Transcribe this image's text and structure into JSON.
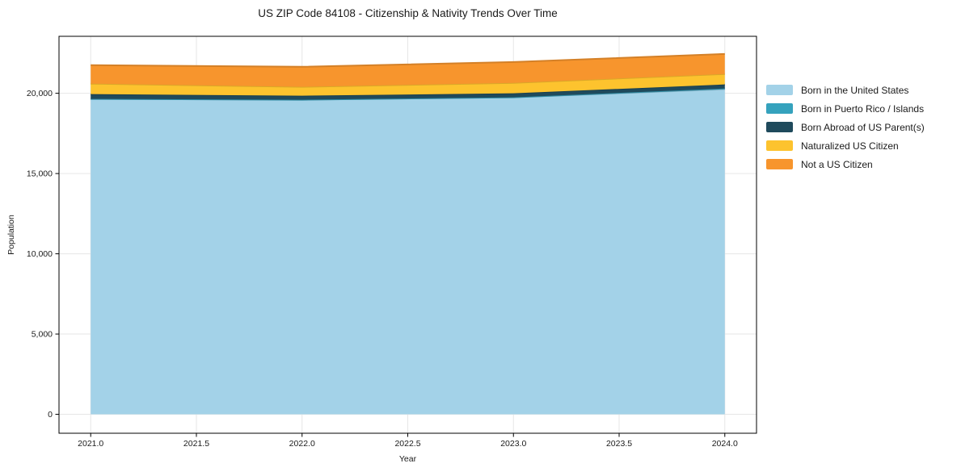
{
  "chart_data": {
    "type": "area",
    "stacked": true,
    "title": "US ZIP Code 84108 - Citizenship & Nativity Trends Over Time",
    "xlabel": "Year",
    "ylabel": "Population",
    "x": [
      2021,
      2022,
      2023,
      2024
    ],
    "series": [
      {
        "name": "Born in the United States",
        "color": "#A3D2E8",
        "values": [
          19650,
          19600,
          19750,
          20250
        ]
      },
      {
        "name": "Born in Puerto Rico / Islands",
        "color": "#35A2BD",
        "values": [
          0,
          0,
          0,
          50
        ]
      },
      {
        "name": "Born Abroad of US Parent(s)",
        "color": "#1F4A5C",
        "values": [
          300,
          250,
          250,
          250
        ]
      },
      {
        "name": "Naturalized US Citizen",
        "color": "#FDC32E",
        "values": [
          650,
          550,
          650,
          650
        ]
      },
      {
        "name": "Not a US Citizen",
        "color": "#F7952D",
        "values": [
          1150,
          1250,
          1300,
          1250
        ]
      }
    ],
    "xticks": [
      2021.0,
      2021.5,
      2022.0,
      2022.5,
      2023.0,
      2023.5,
      2024.0
    ],
    "yticks": [
      0,
      5000,
      10000,
      15000,
      20000
    ],
    "xlim": [
      2020.85,
      2024.15
    ],
    "ylim": [
      -1180,
      23550
    ],
    "grid": true,
    "grid_color": "#e6e6e6",
    "spine_color": "#000000",
    "legend_position": "right"
  }
}
